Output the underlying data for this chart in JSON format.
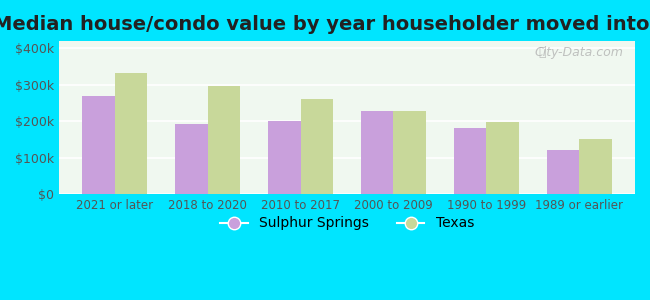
{
  "title": "Median house/condo value by year householder moved into unit",
  "categories": [
    "2021 or later",
    "2018 to 2020",
    "2010 to 2017",
    "2000 to 2009",
    "1990 to 1999",
    "1989 or earlier"
  ],
  "sulphur_springs": [
    268000,
    193000,
    200000,
    228000,
    182000,
    120000
  ],
  "texas": [
    332000,
    296000,
    262000,
    228000,
    198000,
    152000
  ],
  "sulphur_color": "#c9a0dc",
  "texas_color": "#c8d89a",
  "background_outer": "#00e5ff",
  "background_inner": "#f0f8f0",
  "title_fontsize": 14,
  "ylabel_ticks": [
    "$0",
    "$100k",
    "$200k",
    "$300k",
    "$400k"
  ],
  "ytick_values": [
    0,
    100000,
    200000,
    300000,
    400000
  ],
  "ylim": [
    0,
    420000
  ],
  "watermark": "City-Data.com",
  "legend_sulphur": "Sulphur Springs",
  "legend_texas": "Texas"
}
